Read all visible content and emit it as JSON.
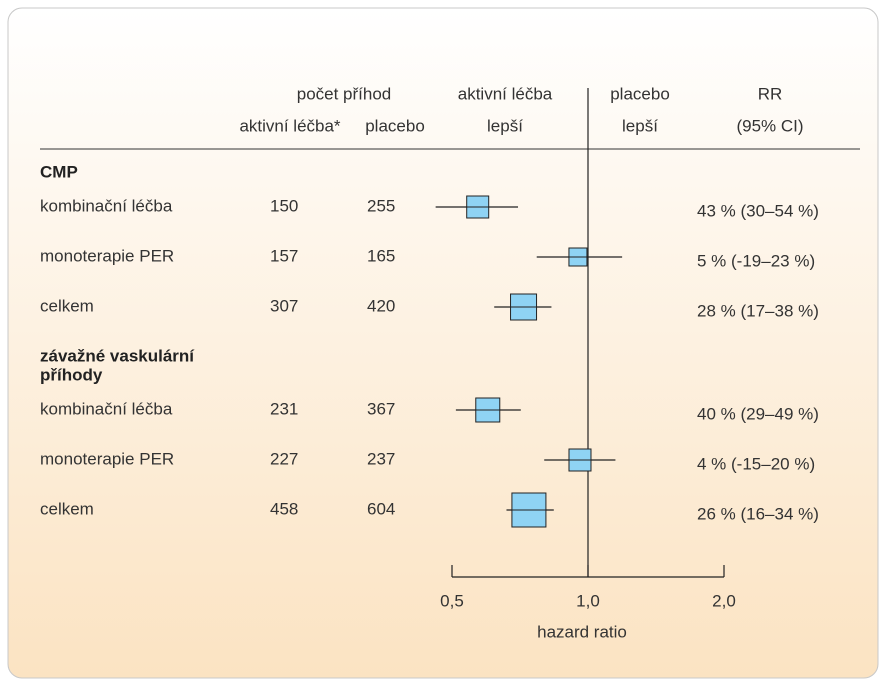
{
  "chart_data": {
    "type": "forest",
    "headers": {
      "events": "počet příhod",
      "active": "aktivní léčba*",
      "placebo": "placebo",
      "active_better_1": "aktivní léčba",
      "active_better_2": "lepší",
      "placebo_better_1": "placebo",
      "placebo_better_2": "lepší",
      "rr_1": "RR",
      "rr_2": "(95% CI)"
    },
    "groups": [
      {
        "name": [
          "CMP"
        ],
        "rows": [
          {
            "label": "kombinační léčba",
            "active": 150,
            "placebo": 255,
            "hr": 0.57,
            "lo": 0.46,
            "hi": 0.7,
            "weight": 22,
            "rr_label": "43 % (30–54 %)"
          },
          {
            "label": "monoterapie PER",
            "active": 157,
            "placebo": 165,
            "hr": 0.95,
            "lo": 0.77,
            "hi": 1.19,
            "weight": 18,
            "rr_label": "5 % (-19–23 %)"
          },
          {
            "label": "celkem",
            "active": 307,
            "placebo": 420,
            "hr": 0.72,
            "lo": 0.62,
            "hi": 0.83,
            "weight": 26,
            "rr_label": "28 % (17–38 %)"
          }
        ]
      },
      {
        "name": [
          "závažné vaskulární",
          "příhody"
        ],
        "rows": [
          {
            "label": "kombinační léčba",
            "active": 231,
            "placebo": 367,
            "hr": 0.6,
            "lo": 0.51,
            "hi": 0.71,
            "weight": 24,
            "rr_label": "40 % (29–49 %)"
          },
          {
            "label": "monoterapie PER",
            "active": 227,
            "placebo": 237,
            "hr": 0.96,
            "lo": 0.8,
            "hi": 1.15,
            "weight": 22,
            "rr_label": "4 % (-15–20 %)"
          },
          {
            "label": "celkem",
            "active": 458,
            "placebo": 604,
            "hr": 0.74,
            "lo": 0.66,
            "hi": 0.84,
            "weight": 34,
            "rr_label": "26 % (16–34 %)"
          }
        ]
      }
    ],
    "xlabel": "hazard ratio",
    "log_scale": true,
    "xlim": [
      0.5,
      2
    ],
    "xticks": [
      {
        "value": 0.5,
        "label": "0,5"
      },
      {
        "value": 1,
        "label": "1,0"
      },
      {
        "value": 2,
        "label": "2,0"
      }
    ],
    "reference_line": 1,
    "box_color": "#8fd3f4"
  }
}
